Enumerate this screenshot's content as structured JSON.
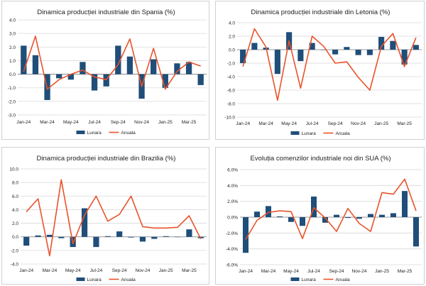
{
  "colors": {
    "bar": "#1f4e79",
    "line": "#e8532b",
    "grid": "#d9d9d9",
    "axis": "#808080",
    "text": "#222222"
  },
  "legend": {
    "bar_label": "Lunara",
    "line_label": "Anuala"
  },
  "chart_data": [
    {
      "type": "bar+line",
      "title": "Dinamica producției industriale din Spania (%)",
      "categories": [
        "Jan-24",
        "Feb-24",
        "Mar-24",
        "Apr-24",
        "May-24",
        "Jun-24",
        "Jul-24",
        "Aug-24",
        "Sep-24",
        "Oct-24",
        "Nov-24",
        "Dec-24",
        "Jan-25",
        "Feb-25",
        "Mar-25",
        "Apr-25"
      ],
      "tick_labels": [
        "Jan-24",
        "Mar-24",
        "May-24",
        "Jul-24",
        "Sep-24",
        "Nov-24",
        "Jan-25",
        "Mar-25"
      ],
      "series": [
        {
          "name": "Lunara",
          "kind": "bar",
          "values": [
            2.1,
            1.4,
            -1.9,
            -0.3,
            -0.4,
            0.9,
            -1.2,
            -0.9,
            2.1,
            1.3,
            -1.8,
            1.1,
            -1.0,
            0.8,
            0.9,
            -0.8
          ]
        },
        {
          "name": "Anuala",
          "kind": "line",
          "values": [
            0.2,
            2.8,
            -1.1,
            -0.4,
            0.0,
            0.3,
            -0.2,
            -0.4,
            0.7,
            2.6,
            -0.9,
            1.9,
            -1.1,
            0.2,
            0.9,
            0.6
          ]
        }
      ],
      "ylim": [
        -3.0,
        4.0
      ],
      "yticks": [
        4.0,
        3.0,
        2.0,
        1.0,
        0.0,
        -1.0,
        -2.0,
        -3.0
      ],
      "ytick_labels": [
        "4.0",
        "3.0",
        "2.0",
        "1.0",
        "0.0",
        "-1.0",
        "-2.0",
        "-3.0"
      ]
    },
    {
      "type": "bar+line",
      "title": "Dinamica producției industriale din Letonia (%)",
      "categories": [
        "Jan-24",
        "Feb-24",
        "Mar-24",
        "Apr-24",
        "May-24",
        "Jun-24",
        "Jul-24",
        "Aug-24",
        "Sep-24",
        "Oct-24",
        "Nov-24",
        "Dec-24",
        "Jan-25",
        "Feb-25",
        "Mar-25",
        "Apr-25"
      ],
      "tick_labels": [
        "Jan-24",
        "Mar-24",
        "May-24",
        "Jul-24",
        "Sep-24",
        "Nov-24",
        "Jan-25",
        "Mar-25"
      ],
      "series": [
        {
          "name": "Lunara",
          "kind": "bar",
          "values": [
            -2.0,
            1.0,
            0.3,
            -3.6,
            2.6,
            -1.7,
            1.0,
            0.0,
            -0.7,
            0.4,
            -0.8,
            -0.8,
            1.9,
            1.3,
            -2.2,
            0.7
          ]
        },
        {
          "name": "Anuala",
          "kind": "line",
          "values": [
            -2.5,
            3.1,
            0.4,
            -7.5,
            1.3,
            -5.7,
            2.0,
            0.5,
            -2.0,
            -1.8,
            -4.1,
            -6.0,
            0.5,
            2.4,
            -2.5,
            1.8
          ]
        }
      ],
      "ylim": [
        -10.0,
        4.0
      ],
      "yticks": [
        4.0,
        2.0,
        0.0,
        -2.0,
        -4.0,
        -6.0,
        -8.0,
        -10.0
      ],
      "ytick_labels": [
        "4.0",
        "2.0",
        "0.0",
        "-2.0",
        "-4.0",
        "-6.0",
        "-8.0",
        "-10.0"
      ]
    },
    {
      "type": "bar+line",
      "title": "Dinamica producției industriale din Brazilia (%)",
      "categories": [
        "Jan-24",
        "Feb-24",
        "Mar-24",
        "Apr-24",
        "May-24",
        "Jun-24",
        "Jul-24",
        "Aug-24",
        "Sep-24",
        "Oct-24",
        "Nov-24",
        "Dec-24",
        "Jan-25",
        "Feb-25",
        "Mar-25",
        "Apr-25"
      ],
      "tick_labels": [
        "Jan-24",
        "Mar-24",
        "May-24",
        "Jul-24",
        "Sep-24",
        "Nov-24",
        "Jan-25",
        "Mar-25"
      ],
      "series": [
        {
          "name": "Lunara",
          "kind": "bar",
          "values": [
            -1.3,
            0.2,
            0.3,
            -0.2,
            -1.5,
            4.2,
            -1.5,
            0.1,
            0.8,
            -0.1,
            -0.7,
            -0.3,
            0.1,
            0.0,
            1.1,
            -0.2
          ]
        },
        {
          "name": "Anuala",
          "kind": "line",
          "values": [
            3.7,
            5.6,
            -2.8,
            8.4,
            -1.0,
            3.2,
            6.0,
            2.3,
            3.3,
            6.0,
            1.5,
            1.3,
            1.3,
            1.4,
            3.1,
            -0.3
          ]
        }
      ],
      "ylim": [
        -4.0,
        10.0
      ],
      "yticks": [
        10.0,
        8.0,
        6.0,
        4.0,
        2.0,
        0.0,
        -2.0,
        -4.0
      ],
      "ytick_labels": [
        "10.0",
        "8.0",
        "6.0",
        "4.0",
        "2.0",
        "0.0",
        "-2.0",
        "-4.0"
      ]
    },
    {
      "type": "bar+line",
      "title": "Evoluția comenzilor industriale noi din SUA (%)",
      "categories": [
        "Jan-24",
        "Feb-24",
        "Mar-24",
        "Apr-24",
        "May-24",
        "Jun-24",
        "Jul-24",
        "Aug-24",
        "Sep-24",
        "Oct-24",
        "Nov-24",
        "Dec-24",
        "Jan-25",
        "Feb-25",
        "Mar-25",
        "Apr-25"
      ],
      "tick_labels": [
        "Jan-24",
        "Mar-24",
        "May-24",
        "Jul-24",
        "Sep-24",
        "Nov-24",
        "Jan-25",
        "Mar-25"
      ],
      "series": [
        {
          "name": "Lunara",
          "kind": "bar",
          "values": [
            -4.5,
            0.7,
            1.4,
            0.1,
            -0.6,
            -1.1,
            2.6,
            -0.7,
            0.3,
            -0.1,
            -0.2,
            0.4,
            0.3,
            0.5,
            3.3,
            -3.7
          ]
        },
        {
          "name": "Anuala",
          "kind": "line",
          "values": [
            -2.8,
            -0.4,
            0.6,
            0.8,
            0.7,
            -2.7,
            1.2,
            -0.1,
            -1.8,
            1.1,
            -0.8,
            -1.8,
            3.1,
            2.9,
            4.8,
            0.8
          ]
        }
      ],
      "ylim": [
        -6.0,
        6.0
      ],
      "yticks": [
        6.0,
        4.0,
        2.0,
        0.0,
        -2.0,
        -4.0,
        -6.0
      ],
      "ytick_labels": [
        "6.0%",
        "4.0%",
        "2.0%",
        "0.0%",
        "-2.0%",
        "-4.0%",
        "-6.0%"
      ]
    }
  ]
}
